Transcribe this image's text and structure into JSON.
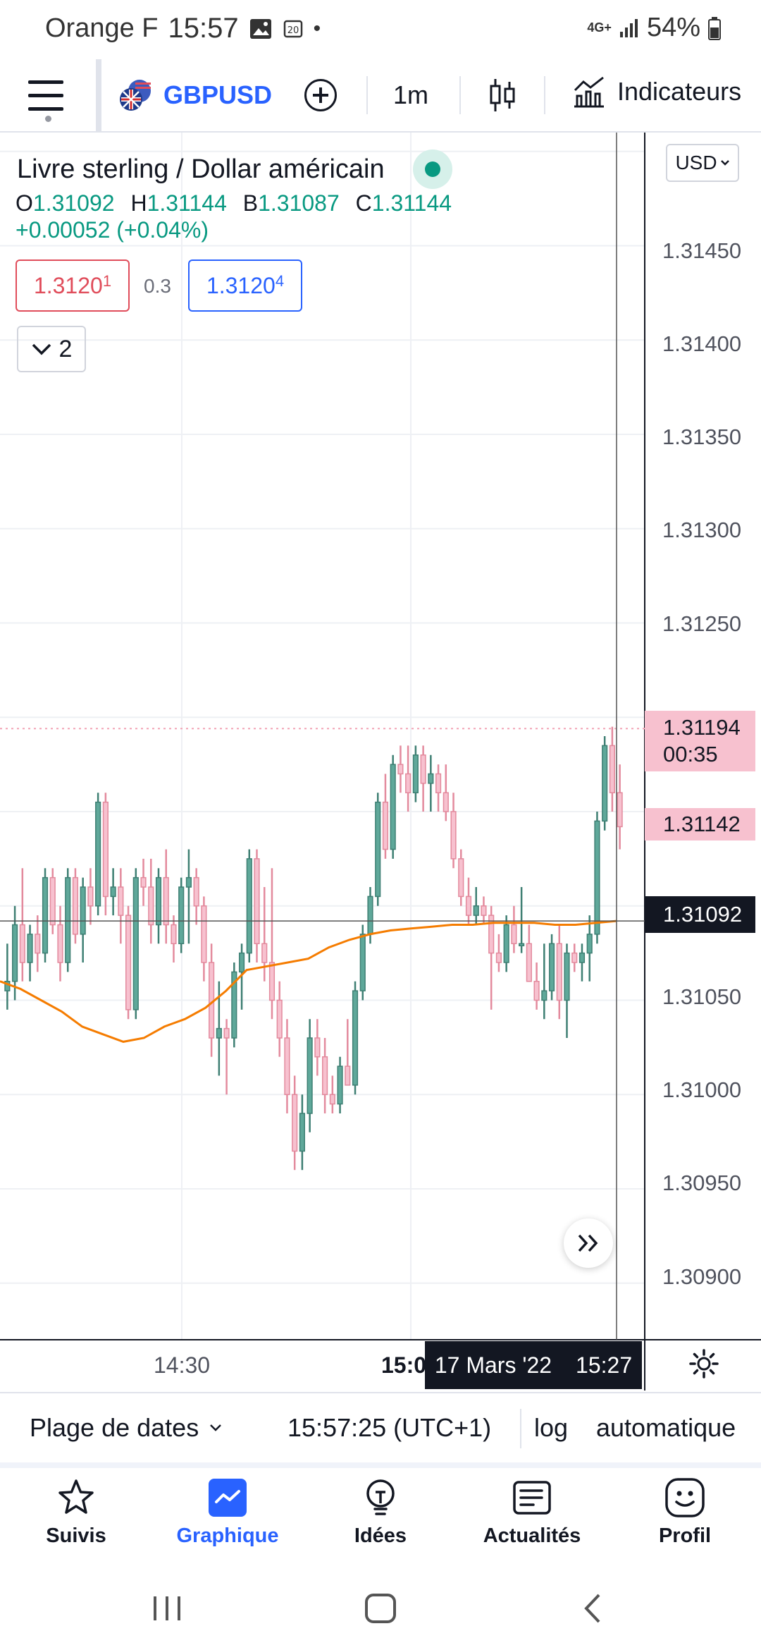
{
  "status_bar": {
    "carrier": "Orange F",
    "time": "15:57",
    "network": "4G+",
    "battery": "54%"
  },
  "toolbar": {
    "symbol": "GBPUSD",
    "interval": "1m",
    "indicators_label": "Indicateurs"
  },
  "header": {
    "title": "Livre sterling / Dollar américain",
    "ohlc": {
      "o_label": "O",
      "o": "1.31092",
      "h_label": "H",
      "h": "1.31144",
      "b_label": "B",
      "b": "1.31087",
      "c_label": "C",
      "c": "1.31144"
    },
    "change": "+0.00052 (+0.04%)",
    "bid_main": "1.3120",
    "bid_sup": "1",
    "spread": "0.3",
    "ask_main": "1.3120",
    "ask_sup": "4",
    "collapse_count": "2",
    "currency": "USD"
  },
  "price_axis": {
    "labels": [
      "1.31450",
      "1.31400",
      "1.31350",
      "1.31300",
      "1.31250",
      "1.31050",
      "1.31000",
      "1.30950",
      "1.30900"
    ],
    "tag_ask": {
      "price": "1.31194",
      "countdown": "00:35",
      "color": "#f7c1cf"
    },
    "tag_last": {
      "price": "1.31142",
      "color": "#f7c1cf"
    },
    "tag_cross": {
      "price": "1.31092",
      "color": "#131722"
    }
  },
  "time_axis": {
    "labels": [
      "14:30",
      "15:0"
    ],
    "crosshair_date": "17 Mars '22",
    "crosshair_time": "15:27"
  },
  "chart_data": {
    "type": "candlestick",
    "ylim": [
      1.3087,
      1.3151
    ],
    "up_color": "#5fa89a",
    "down_color": "#f7c1cf",
    "ma_color": "#f57c00",
    "candles": [
      [
        1.31055,
        1.3108,
        1.31045,
        1.3106
      ],
      [
        1.3106,
        1.311,
        1.3105,
        1.3109
      ],
      [
        1.3109,
        1.3112,
        1.3106,
        1.3107
      ],
      [
        1.3107,
        1.3109,
        1.3106,
        1.31085
      ],
      [
        1.31085,
        1.31095,
        1.31065,
        1.31075
      ],
      [
        1.31075,
        1.3112,
        1.3107,
        1.31115
      ],
      [
        1.31115,
        1.3112,
        1.31085,
        1.3109
      ],
      [
        1.3109,
        1.311,
        1.3106,
        1.3107
      ],
      [
        1.3107,
        1.3112,
        1.31065,
        1.31115
      ],
      [
        1.31115,
        1.3112,
        1.3108,
        1.31085
      ],
      [
        1.31085,
        1.31115,
        1.3107,
        1.3111
      ],
      [
        1.3111,
        1.3112,
        1.3109,
        1.311
      ],
      [
        1.311,
        1.3116,
        1.31095,
        1.31155
      ],
      [
        1.31155,
        1.3116,
        1.31095,
        1.31105
      ],
      [
        1.31105,
        1.3112,
        1.31095,
        1.3111
      ],
      [
        1.3111,
        1.3112,
        1.3108,
        1.31095
      ],
      [
        1.31095,
        1.311,
        1.3104,
        1.31045
      ],
      [
        1.31045,
        1.3112,
        1.3104,
        1.31115
      ],
      [
        1.31115,
        1.31125,
        1.311,
        1.3111
      ],
      [
        1.3111,
        1.31125,
        1.3108,
        1.3109
      ],
      [
        1.3109,
        1.3112,
        1.3108,
        1.31115
      ],
      [
        1.31115,
        1.3113,
        1.3108,
        1.3109
      ],
      [
        1.3109,
        1.31095,
        1.3107,
        1.3108
      ],
      [
        1.3108,
        1.31115,
        1.31075,
        1.3111
      ],
      [
        1.3111,
        1.3113,
        1.3108,
        1.31115
      ],
      [
        1.31115,
        1.3112,
        1.3109,
        1.311
      ],
      [
        1.311,
        1.31105,
        1.3106,
        1.3107
      ],
      [
        1.3107,
        1.3108,
        1.3102,
        1.3103
      ],
      [
        1.3103,
        1.3106,
        1.3101,
        1.31035
      ],
      [
        1.31035,
        1.3104,
        1.31,
        1.3103
      ],
      [
        1.3103,
        1.3107,
        1.31025,
        1.31065
      ],
      [
        1.31065,
        1.3108,
        1.31045,
        1.31075
      ],
      [
        1.31075,
        1.3113,
        1.3107,
        1.31125
      ],
      [
        1.31125,
        1.3113,
        1.3107,
        1.3108
      ],
      [
        1.3108,
        1.3111,
        1.3106,
        1.3107
      ],
      [
        1.3107,
        1.3112,
        1.3104,
        1.3105
      ],
      [
        1.3105,
        1.3106,
        1.3102,
        1.3103
      ],
      [
        1.3103,
        1.3104,
        1.3099,
        1.31
      ],
      [
        1.31,
        1.3101,
        1.3096,
        1.3097
      ],
      [
        1.3097,
        1.31,
        1.3096,
        1.3099
      ],
      [
        1.3099,
        1.3104,
        1.3098,
        1.3103
      ],
      [
        1.3103,
        1.3104,
        1.3101,
        1.3102
      ],
      [
        1.3102,
        1.3103,
        1.3099,
        1.31
      ],
      [
        1.31,
        1.3101,
        1.3099,
        1.30995
      ],
      [
        1.30995,
        1.3102,
        1.3099,
        1.31015
      ],
      [
        1.31015,
        1.3104,
        1.31005,
        1.31005
      ],
      [
        1.31005,
        1.3106,
        1.31,
        1.31055
      ],
      [
        1.31055,
        1.3109,
        1.3105,
        1.31085
      ],
      [
        1.31085,
        1.3111,
        1.3108,
        1.31105
      ],
      [
        1.31105,
        1.3116,
        1.311,
        1.31155
      ],
      [
        1.31155,
        1.3117,
        1.31125,
        1.3113
      ],
      [
        1.3113,
        1.3118,
        1.31125,
        1.31175
      ],
      [
        1.31175,
        1.31185,
        1.3116,
        1.3117
      ],
      [
        1.3117,
        1.31185,
        1.3115,
        1.3116
      ],
      [
        1.3116,
        1.31185,
        1.31155,
        1.3118
      ],
      [
        1.3118,
        1.31185,
        1.3115,
        1.31165
      ],
      [
        1.31165,
        1.3118,
        1.3115,
        1.3117
      ],
      [
        1.3117,
        1.31175,
        1.3115,
        1.3116
      ],
      [
        1.3116,
        1.31175,
        1.31145,
        1.3115
      ],
      [
        1.3115,
        1.3116,
        1.3112,
        1.31125
      ],
      [
        1.31125,
        1.3113,
        1.311,
        1.31105
      ],
      [
        1.31105,
        1.31115,
        1.3109,
        1.31095
      ],
      [
        1.31095,
        1.3111,
        1.3109,
        1.311
      ],
      [
        1.311,
        1.31105,
        1.3109,
        1.31095
      ],
      [
        1.31095,
        1.311,
        1.31045,
        1.31075
      ],
      [
        1.31075,
        1.31085,
        1.31065,
        1.3107
      ],
      [
        1.3107,
        1.31095,
        1.31065,
        1.3109
      ],
      [
        1.3109,
        1.311,
        1.31075,
        1.3108
      ],
      [
        1.3108,
        1.3111,
        1.31075,
        1.3108
      ],
      [
        1.3108,
        1.3109,
        1.3106,
        1.3106
      ],
      [
        1.3106,
        1.3107,
        1.31045,
        1.3105
      ],
      [
        1.3105,
        1.3108,
        1.3104,
        1.31055
      ],
      [
        1.31055,
        1.31085,
        1.3105,
        1.3108
      ],
      [
        1.3108,
        1.3109,
        1.3104,
        1.3105
      ],
      [
        1.3105,
        1.3108,
        1.3103,
        1.31075
      ],
      [
        1.31075,
        1.3108,
        1.31065,
        1.3107
      ],
      [
        1.3107,
        1.3108,
        1.3106,
        1.31075
      ],
      [
        1.31075,
        1.31095,
        1.3106,
        1.31085
      ],
      [
        1.31085,
        1.3115,
        1.3108,
        1.31145
      ],
      [
        1.31145,
        1.3119,
        1.3114,
        1.31185
      ],
      [
        1.31185,
        1.31195,
        1.3115,
        1.3116
      ],
      [
        1.3116,
        1.31175,
        1.3113,
        1.31142
      ]
    ],
    "ma": [
      1.3106,
      1.31056,
      1.3105,
      1.31044,
      1.31036,
      1.31032,
      1.31028,
      1.3103,
      1.31036,
      1.3104,
      1.31046,
      1.31055,
      1.31066,
      1.31068,
      1.3107,
      1.31072,
      1.31078,
      1.31082,
      1.31085,
      1.31087,
      1.31088,
      1.31089,
      1.3109,
      1.3109,
      1.31091,
      1.31091,
      1.31091,
      1.3109,
      1.3109,
      1.31091,
      1.31092
    ],
    "crosshair_price": 1.31092
  },
  "info_bar": {
    "date_range": "Plage de dates",
    "clock": "15:57:25 (UTC+1)",
    "log": "log",
    "auto": "automatique"
  },
  "bottom_nav": {
    "items": [
      {
        "label": "Suivis",
        "icon": "star-icon"
      },
      {
        "label": "Graphique",
        "icon": "chart-icon"
      },
      {
        "label": "Idées",
        "icon": "lightbulb-icon"
      },
      {
        "label": "Actualités",
        "icon": "news-icon"
      },
      {
        "label": "Profil",
        "icon": "smiley-icon"
      }
    ]
  },
  "colors": {
    "accent": "#2962ff",
    "up": "#089981",
    "down": "#e04c5a"
  }
}
